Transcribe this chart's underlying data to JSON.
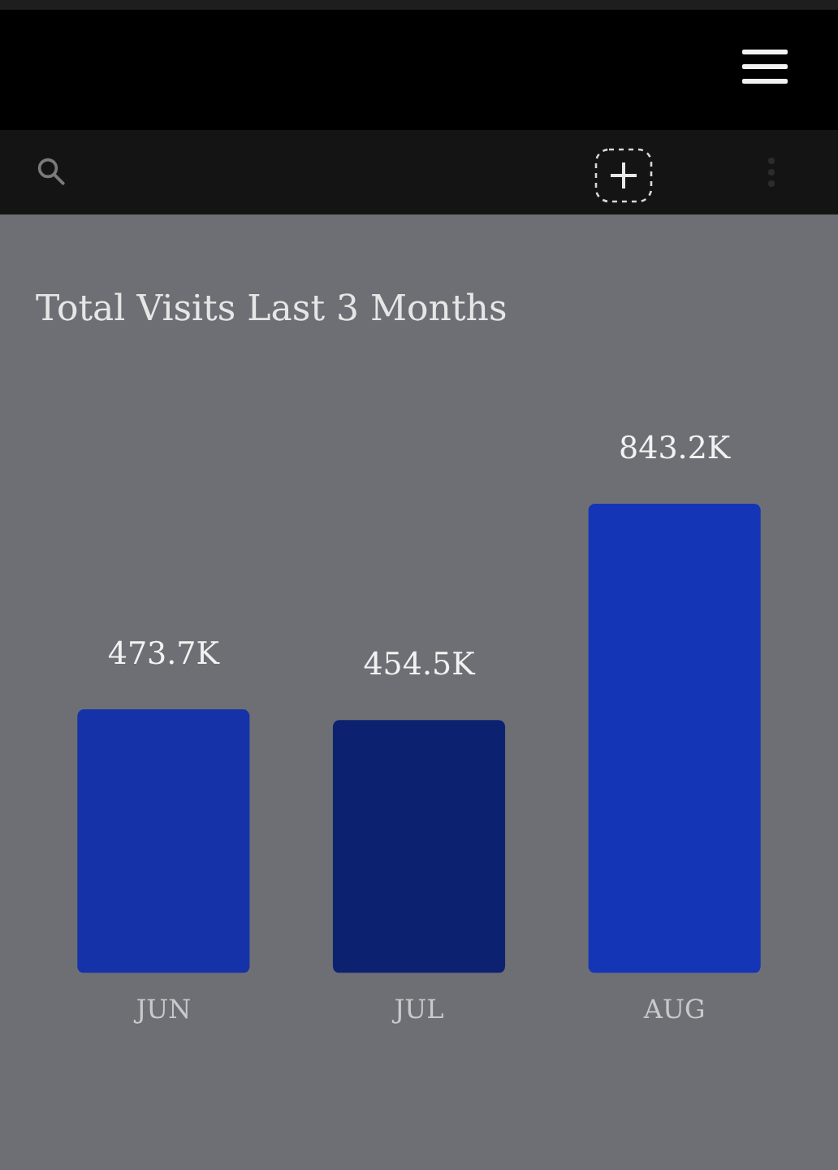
{
  "chart_data": {
    "type": "bar",
    "title": "Total Visits Last 3 Months",
    "categories": [
      "JUN",
      "JUL",
      "AUG"
    ],
    "values": [
      473.7,
      454.5,
      843.2
    ],
    "colors": [
      "#1532a9",
      "#0c2270",
      "#1535b7"
    ],
    "value_labels": [
      "473.7K",
      "454.5K",
      "843.2K"
    ]
  }
}
